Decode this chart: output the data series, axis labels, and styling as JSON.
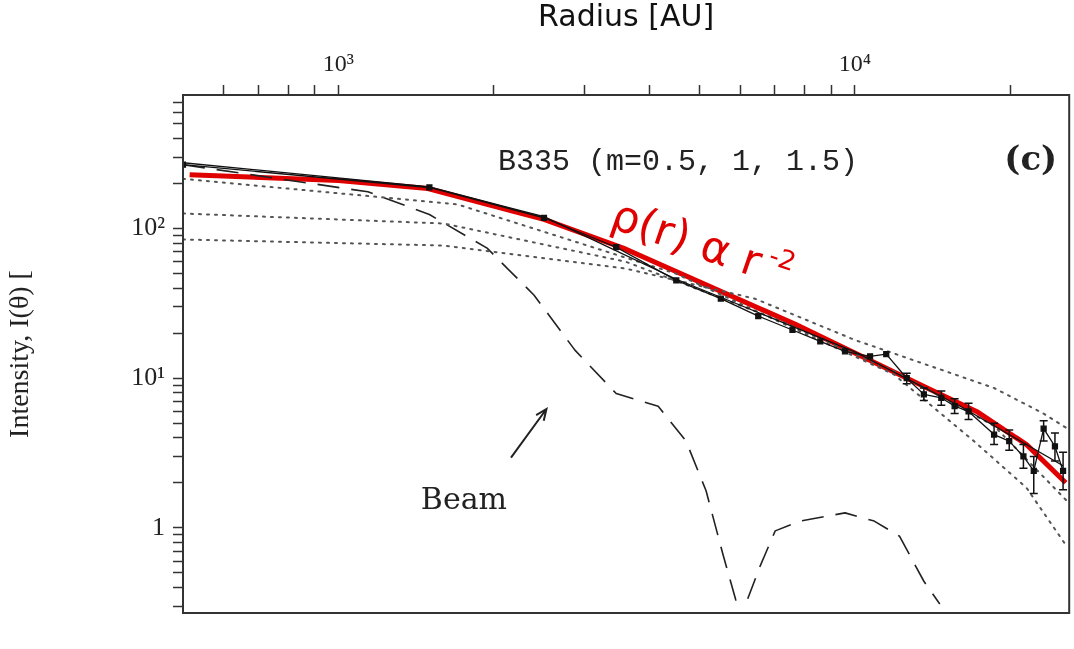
{
  "chart_data": {
    "type": "line",
    "xlabel": "Radius [AU]",
    "ylabel": "Intensity, I(θ) [",
    "log": "xy",
    "grid": false,
    "legend": false,
    "xlim": [
      500,
      26000
    ],
    "ylim": [
      0.27,
      780
    ],
    "xticks": [
      {
        "value": 600,
        "label": null
      },
      {
        "value": 700,
        "label": null
      },
      {
        "value": 800,
        "label": null
      },
      {
        "value": 900,
        "label": null
      },
      {
        "value": 1000,
        "label": "10³"
      },
      {
        "value": 2000,
        "label": null
      },
      {
        "value": 3000,
        "label": null
      },
      {
        "value": 4000,
        "label": null
      },
      {
        "value": 5000,
        "label": null
      },
      {
        "value": 6000,
        "label": null
      },
      {
        "value": 7000,
        "label": null
      },
      {
        "value": 8000,
        "label": null
      },
      {
        "value": 9000,
        "label": null
      },
      {
        "value": 10000,
        "label": "10⁴"
      },
      {
        "value": 20000,
        "label": null
      }
    ],
    "yticks": [
      {
        "value": 0.3,
        "label": null
      },
      {
        "value": 0.4,
        "label": null
      },
      {
        "value": 0.5,
        "label": null
      },
      {
        "value": 0.6,
        "label": null
      },
      {
        "value": 0.7,
        "label": null
      },
      {
        "value": 0.8,
        "label": null
      },
      {
        "value": 0.9,
        "label": null
      },
      1,
      {
        "value": 2,
        "label": null
      },
      {
        "value": 3,
        "label": null
      },
      {
        "value": 4,
        "label": null
      },
      {
        "value": 5,
        "label": null
      },
      {
        "value": 6,
        "label": null
      },
      {
        "value": 7,
        "label": null
      },
      {
        "value": 8,
        "label": null
      },
      {
        "value": 9,
        "label": null
      },
      {
        "value": 10,
        "label": "10¹"
      },
      {
        "value": 20,
        "label": null
      },
      {
        "value": 30,
        "label": null
      },
      {
        "value": 40,
        "label": null
      },
      {
        "value": 50,
        "label": null
      },
      {
        "value": 60,
        "label": null
      },
      {
        "value": 70,
        "label": null
      },
      {
        "value": 80,
        "label": null
      },
      {
        "value": 90,
        "label": null
      },
      {
        "value": 100,
        "label": "10²"
      },
      {
        "value": 200,
        "label": null
      },
      {
        "value": 300,
        "label": null
      },
      {
        "value": 400,
        "label": null
      },
      {
        "value": 500,
        "label": null
      },
      {
        "value": 600,
        "label": null
      },
      {
        "value": 700,
        "label": null
      }
    ],
    "series": [
      {
        "color": "#111111",
        "marker": "square",
        "line_style": "solid",
        "x": [
          500,
          1500,
          2500,
          3450,
          4510,
          5500,
          6500,
          7570,
          8570,
          9570,
          10700,
          11500,
          12600,
          13600,
          14700,
          15600,
          16600,
          18600,
          19900,
          21200,
          22200,
          23200,
          24400,
          25300
        ],
        "values": [
          267,
          188,
          118,
          75,
          45,
          34,
          26,
          21,
          17.6,
          15.1,
          14,
          14.5,
          10,
          7.8,
          7.4,
          6.5,
          6,
          4.2,
          3.8,
          3,
          2.4,
          4.6,
          3.5,
          2.4
        ],
        "errors": [
          null,
          null,
          null,
          null,
          null,
          null,
          null,
          null,
          null,
          null,
          null,
          null,
          [
            9.2,
            10.8
          ],
          [
            7.1,
            8.6
          ],
          [
            6.6,
            8.2
          ],
          [
            5.8,
            7.3
          ],
          [
            5.3,
            6.8
          ],
          [
            3.6,
            5
          ],
          [
            3.3,
            4.5
          ],
          [
            2.5,
            3.6
          ],
          [
            1.7,
            3
          ],
          [
            3.8,
            5.2
          ],
          [
            2.8,
            4.3
          ],
          [
            1.8,
            3.2
          ]
        ]
      },
      {
        "color": "#111111",
        "marker": "none",
        "line_style": "solid",
        "x": [
          500,
          1500,
          2500,
          4500,
          10000,
          16000,
          25300
        ],
        "values": [
          275,
          190,
          120,
          46,
          15,
          6.5,
          2.6
        ]
      },
      {
        "color": "#555555",
        "marker": "none",
        "line_style": "dotted",
        "x": [
          500,
          1700,
          4500,
          7500,
          11900,
          17000,
          21500,
          25800
        ],
        "values": [
          215,
          145,
          50,
          22,
          10.6,
          3.8,
          1.85,
          0.74
        ]
      },
      {
        "color": "#555555",
        "marker": "none",
        "line_style": "dotted",
        "x": [
          500,
          1600,
          3600,
          7000,
          12000,
          18600,
          25800
        ],
        "values": [
          126,
          108,
          60,
          25,
          11,
          4.8,
          1.5
        ]
      },
      {
        "color": "#555555",
        "marker": "none",
        "line_style": "dotted",
        "x": [
          500,
          1600,
          3600,
          6400,
          10000,
          18600,
          23200,
          25800
        ],
        "values": [
          84.5,
          77,
          54,
          34,
          18,
          8.6,
          5.8,
          4.6
        ]
      },
      {
        "color": "#222222",
        "marker": "none",
        "line_style": "dashed",
        "x": [
          500,
          1140,
          1500,
          1940,
          2390,
          2870,
          3450,
          4160,
          4710,
          5150,
          5550,
          5880,
          6190,
          6560,
          7010,
          7830,
          9570,
          10900,
          12200,
          13600,
          14600
        ],
        "values": [
          267,
          176,
          124,
          74,
          36,
          15.4,
          7.9,
          6.5,
          3.8,
          1.77,
          0.67,
          0.33,
          0.33,
          0.56,
          0.955,
          1.11,
          1.26,
          1.11,
          0.88,
          0.44,
          0.31
        ]
      },
      {
        "color": "#e00000",
        "marker": "none",
        "line_style": "solid",
        "x": [
          515,
          1000,
          1490,
          2500,
          3560,
          7670,
          13800,
          17200,
          21500,
          25600
        ],
        "values": [
          229,
          209,
          185,
          115,
          74,
          22.9,
          8.6,
          6,
          3.6,
          2
        ]
      }
    ],
    "annotations": [
      "B335 (m=0.5, 1, 1.5)",
      "(c)",
      "Beam",
      "ρ(r) α r$^{-2}$"
    ]
  }
}
